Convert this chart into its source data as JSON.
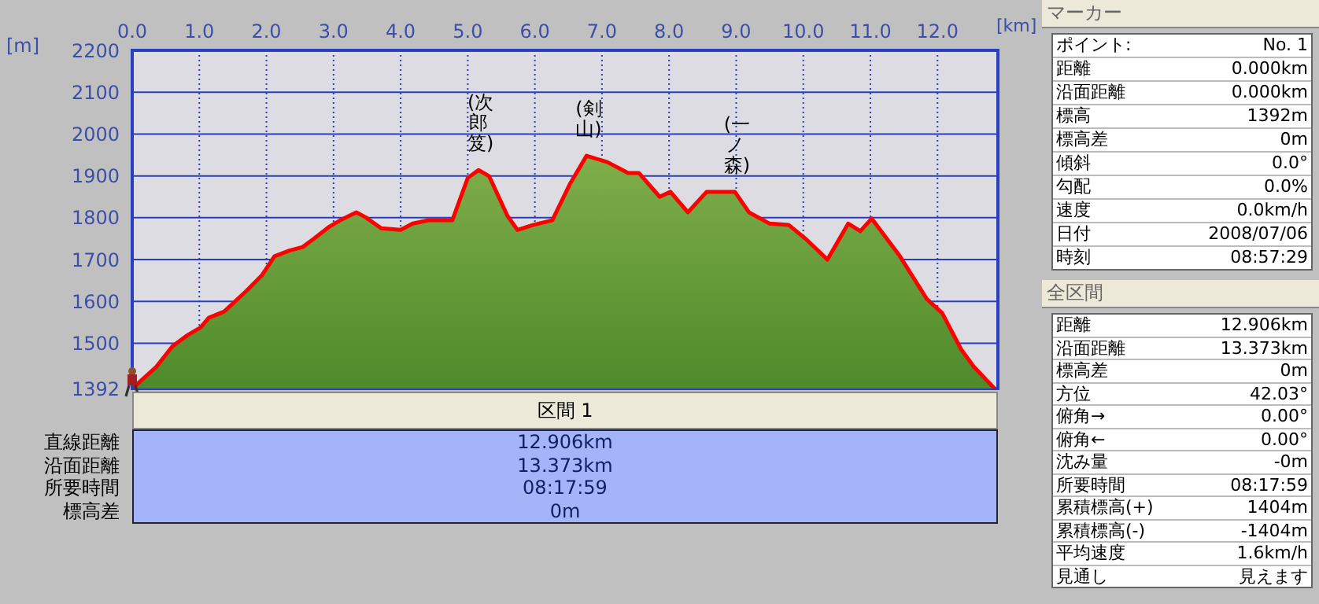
{
  "chart_data": [
    {
      "type": "area",
      "xlabel": "[km]",
      "ylabel": "[m]",
      "xlim": [
        0,
        12.9
      ],
      "ylim": [
        1392,
        2200
      ],
      "xticks": [
        {
          "value": 0,
          "label": "0.0"
        },
        {
          "value": 1,
          "label": "1.0"
        },
        {
          "value": 2,
          "label": "2.0"
        },
        {
          "value": 3,
          "label": "3.0"
        },
        {
          "value": 4,
          "label": "4.0"
        },
        {
          "value": 5,
          "label": "5.0"
        },
        {
          "value": 6,
          "label": "6.0"
        },
        {
          "value": 7,
          "label": "7.0"
        },
        {
          "value": 8,
          "label": "8.0"
        },
        {
          "value": 9,
          "label": "9.0"
        },
        {
          "value": 10,
          "label": "10.0"
        },
        {
          "value": 11,
          "label": "11.0"
        },
        {
          "value": 12,
          "label": "12.0"
        }
      ],
      "yticks": [
        1392,
        1500,
        1600,
        1700,
        1800,
        1900,
        2000,
        2100,
        2200
      ],
      "grid": true,
      "x": [
        0,
        0.36,
        0.6,
        0.83,
        1.02,
        1.14,
        1.37,
        1.7,
        1.93,
        2.12,
        2.35,
        2.54,
        2.7,
        2.94,
        3.1,
        3.34,
        3.48,
        3.71,
        4.0,
        4.18,
        4.42,
        4.77,
        5.0,
        5.16,
        5.32,
        5.59,
        5.74,
        5.98,
        6.26,
        6.52,
        6.77,
        7.08,
        7.39,
        7.55,
        7.86,
        8.02,
        8.28,
        8.56,
        8.98,
        9.19,
        9.5,
        9.78,
        10.04,
        10.36,
        10.67,
        10.85,
        11.02,
        11.44,
        11.84,
        12.07,
        12.35,
        12.54,
        12.85
      ],
      "series": [
        {
          "color": "#ff0000",
          "values": [
            1392,
            1444,
            1493,
            1520,
            1538,
            1561,
            1576,
            1625,
            1662,
            1708,
            1722,
            1730,
            1749,
            1779,
            1794,
            1813,
            1801,
            1775,
            1771,
            1786,
            1794,
            1794,
            1895,
            1914,
            1899,
            1805,
            1771,
            1783,
            1794,
            1880,
            1948,
            1933,
            1907,
            1907,
            1850,
            1862,
            1813,
            1862,
            1862,
            1813,
            1786,
            1783,
            1749,
            1700,
            1786,
            1768,
            1798,
            1708,
            1606,
            1572,
            1486,
            1444,
            1392
          ]
        }
      ],
      "annotations": [
        {
          "text": "(次郎笈)",
          "x": 5.16,
          "y": 1914
        },
        {
          "text": "(剣山)",
          "x": 6.77,
          "y": 1948
        },
        {
          "text": "(一ノ森)",
          "x": 8.98,
          "y": 1862
        }
      ]
    },
    {
      "type": "other",
      "title": "区間 1",
      "annotations": [
        "直線距離",
        "12.906km",
        "沿面距離",
        "13.373km",
        "所要時間",
        "08:17:59",
        "標高差",
        "0m"
      ]
    },
    {
      "type": "other",
      "title": "マーカー",
      "annotations": [
        "ポイント:",
        "No. 1",
        "距離",
        "0.000km",
        "沿面距離",
        "0.000km",
        "標高",
        "1392m",
        "標高差",
        "0m",
        "傾斜",
        "0.0°",
        "勾配",
        "0.0%",
        "速度",
        "0.0km/h",
        "日付",
        "2008/07/06",
        "時刻",
        "08:57:29"
      ]
    },
    {
      "type": "other",
      "title": "全区間",
      "annotations": [
        "距離",
        "12.906km",
        "沿面距離",
        "13.373km",
        "標高差",
        "0m",
        "方位",
        "42.03°",
        "俯角→",
        "0.00°",
        "俯角←",
        "0.00°",
        "沈み量",
        "-0m",
        "所要時間",
        "08:17:59",
        "累積標高(+)",
        "1404m",
        "累積標高(-)",
        "-1404m",
        "平均速度",
        "1.6km/h",
        "見通し",
        "見えます"
      ]
    }
  ]
}
